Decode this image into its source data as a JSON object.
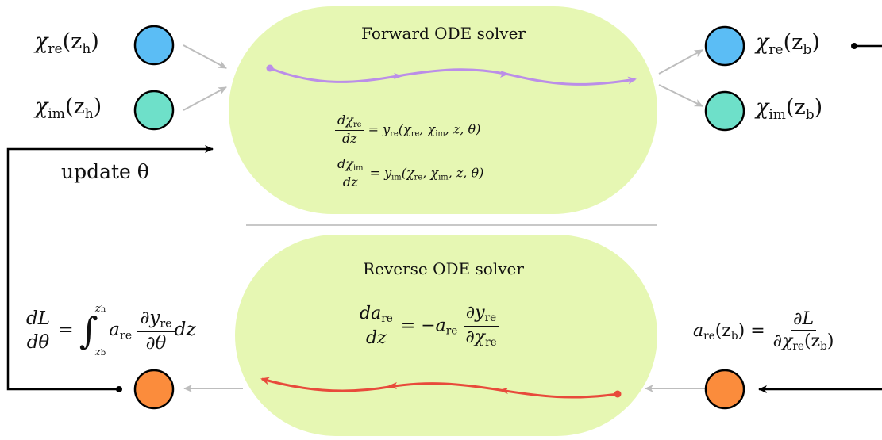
{
  "forward": {
    "title": "Forward ODE solver",
    "eq1": {
      "lhs_num_d": "dχ",
      "lhs_num_sub": "re",
      "lhs_den": "dz",
      "rhs_fn": "y",
      "rhs_sub": "re",
      "rhs_args": "(χ",
      "a1": "re",
      "sep1": ", χ",
      "a2": "im",
      "tail": ", z, θ)"
    },
    "eq2": {
      "lhs_num_d": "dχ",
      "lhs_num_sub": "im",
      "lhs_den": "dz",
      "rhs_fn": "y",
      "rhs_sub": "im",
      "rhs_args": "(χ",
      "a1": "re",
      "sep1": ", χ",
      "a2": "im",
      "tail": ", z, θ)"
    }
  },
  "reverse": {
    "title": "Reverse ODE solver",
    "eq": {
      "lhs_num": "da",
      "lhs_num_sub": "re",
      "lhs_den": "dz",
      "eqsign": "= −a",
      "mid_sub": "re",
      "rnum": "∂y",
      "rnum_sub": "re",
      "rden": "∂χ",
      "rden_sub": "re"
    }
  },
  "inputs": {
    "chi_re_h": {
      "sym": "χ",
      "sub": "re",
      "open": "(z",
      "arg_sub": "h",
      "close": ")"
    },
    "chi_im_h": {
      "sym": "χ",
      "sub": "im",
      "open": "(z",
      "arg_sub": "h",
      "close": ")"
    }
  },
  "outputs": {
    "chi_re_b": {
      "sym": "χ",
      "sub": "re",
      "open": "(z",
      "arg_sub": "b",
      "close": ")"
    },
    "chi_im_b": {
      "sym": "χ",
      "sub": "im",
      "open": "(z",
      "arg_sub": "b",
      "close": ")"
    }
  },
  "update": {
    "text": "update θ"
  },
  "grad_left": {
    "num": "dL",
    "den": "dθ",
    "eq": "=",
    "int": "∫",
    "upper": "z",
    "upper_sub": "h",
    "lower": "z",
    "lower_sub": "b",
    "a": "a",
    "a_sub": "re",
    "pnum": "∂y",
    "pnum_sub": "re",
    "pden": "∂θ",
    "tail": "dz"
  },
  "grad_right": {
    "a": "a",
    "a_sub": "re",
    "open": "(z",
    "arg_sub": "b",
    "close": ")",
    "eq": "=",
    "num": "∂L",
    "den": "∂χ",
    "den_sub": "re",
    "den_open": "(z",
    "den_arg_sub": "b",
    "den_close": ")"
  },
  "colors": {
    "blob": "#e6f7b3",
    "node_blue": "#5bbdf5",
    "node_teal": "#6ee0c9",
    "node_orange": "#fb8c3c",
    "forward_curve": "#bb8ee8",
    "reverse_curve": "#e84a3b",
    "gray_arrow": "#bdbdbd",
    "black": "#000000"
  }
}
